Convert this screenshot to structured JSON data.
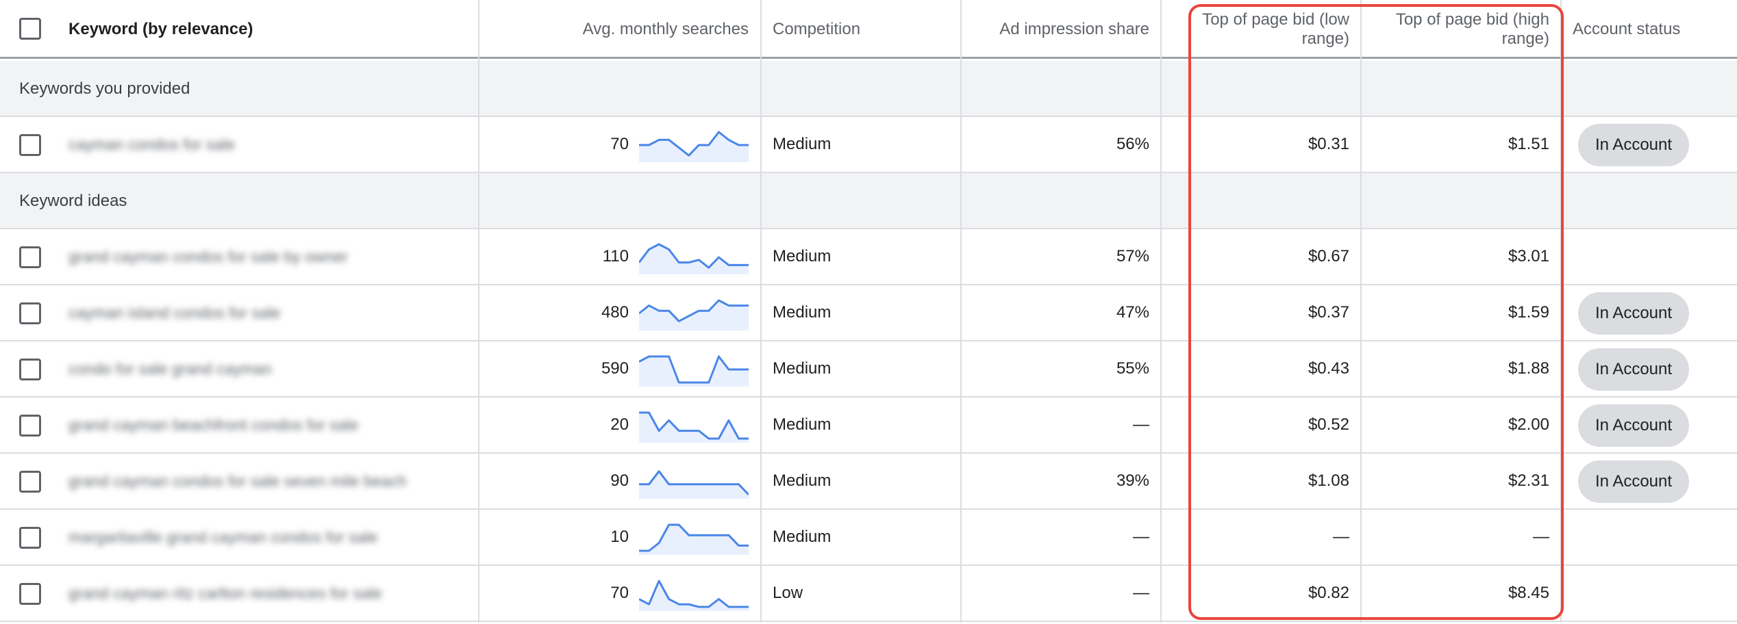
{
  "header": {
    "select_all": "",
    "keyword": "Keyword (by relevance)",
    "avg_monthly_searches": "Avg. monthly searches",
    "competition": "Competition",
    "ad_impression_share": "Ad impression share",
    "bid_low_line1": "Top of page bid (low",
    "bid_low_line2": "range)",
    "bid_high_line1": "Top of page bid (high",
    "bid_high_line2": "range)",
    "account_status": "Account status"
  },
  "groups": {
    "provided": "Keywords you provided",
    "ideas": "Keyword ideas"
  },
  "rows": [
    {
      "keyword": "cayman condos for sale",
      "searches": "70",
      "trend": [
        0.5,
        0.5,
        0.7,
        0.7,
        0.4,
        0.1,
        0.5,
        0.5,
        1.0,
        0.7,
        0.5,
        0.5
      ],
      "competition": "Medium",
      "impression": "56%",
      "bid_low": "$0.31",
      "bid_high": "$1.51",
      "status": "In Account"
    },
    {
      "keyword": "grand cayman condos for sale by owner",
      "searches": "110",
      "trend": [
        0.3,
        0.8,
        1.0,
        0.8,
        0.3,
        0.3,
        0.4,
        0.1,
        0.5,
        0.2,
        0.2,
        0.2
      ],
      "competition": "Medium",
      "impression": "57%",
      "bid_low": "$0.67",
      "bid_high": "$3.01",
      "status": ""
    },
    {
      "keyword": "cayman island condos for sale",
      "searches": "480",
      "trend": [
        0.5,
        0.8,
        0.6,
        0.6,
        0.2,
        0.4,
        0.6,
        0.6,
        1.0,
        0.8,
        0.8,
        0.8
      ],
      "competition": "Medium",
      "impression": "47%",
      "bid_low": "$0.37",
      "bid_high": "$1.59",
      "status": "In Account"
    },
    {
      "keyword": "condo for sale grand cayman",
      "searches": "590",
      "trend": [
        0.8,
        1.0,
        1.0,
        1.0,
        0.0,
        0.0,
        0.0,
        0.0,
        1.0,
        0.5,
        0.5,
        0.5
      ],
      "competition": "Medium",
      "impression": "55%",
      "bid_low": "$0.43",
      "bid_high": "$1.88",
      "status": "In Account"
    },
    {
      "keyword": "grand cayman beachfront condos for sale",
      "searches": "20",
      "trend": [
        1.0,
        1.0,
        0.3,
        0.7,
        0.3,
        0.3,
        0.3,
        0.0,
        0.0,
        0.7,
        0.0,
        0.0
      ],
      "competition": "Medium",
      "impression": "—",
      "bid_low": "$0.52",
      "bid_high": "$2.00",
      "status": "In Account"
    },
    {
      "keyword": "grand cayman condos for sale seven mile beach",
      "searches": "90",
      "trend": [
        0.4,
        0.4,
        0.9,
        0.4,
        0.4,
        0.4,
        0.4,
        0.4,
        0.4,
        0.4,
        0.4,
        0.0
      ],
      "competition": "Medium",
      "impression": "39%",
      "bid_low": "$1.08",
      "bid_high": "$2.31",
      "status": "In Account"
    },
    {
      "keyword": "margaritaville grand cayman condos for sale",
      "searches": "10",
      "trend": [
        0.0,
        0.0,
        0.3,
        1.0,
        1.0,
        0.6,
        0.6,
        0.6,
        0.6,
        0.6,
        0.2,
        0.2
      ],
      "competition": "Medium",
      "impression": "—",
      "bid_low": "—",
      "bid_high": "—",
      "status": ""
    },
    {
      "keyword": "grand cayman ritz carlton residences for sale",
      "searches": "70",
      "trend": [
        0.3,
        0.1,
        1.0,
        0.3,
        0.1,
        0.1,
        0.0,
        0.0,
        0.3,
        0.0,
        0.0,
        0.0
      ],
      "competition": "Low",
      "impression": "—",
      "bid_low": "$0.82",
      "bid_high": "$8.45",
      "status": ""
    }
  ],
  "colors": {
    "accent_blue": "#4a86e8",
    "highlight_red": "#e8453c",
    "chip_gray": "#dadce0",
    "group_bg": "#f1f3f4"
  }
}
